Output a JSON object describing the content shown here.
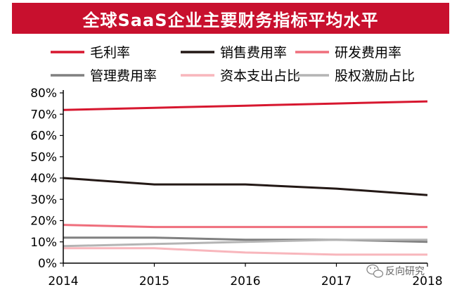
{
  "chart_data": {
    "type": "line",
    "title": "全球SaaS企业主要财务指标平均水平",
    "xlabel": "",
    "ylabel": "",
    "x": [
      "2014",
      "2015",
      "2016",
      "2017",
      "2018"
    ],
    "ylim": [
      0,
      80
    ],
    "y_ticks": [
      "0%",
      "10%",
      "20%",
      "30%",
      "40%",
      "50%",
      "60%",
      "70%",
      "80%"
    ],
    "legend_position": "top",
    "grid": false,
    "series": [
      {
        "name": "毛利率",
        "color": "#d7172f",
        "values": [
          72,
          73,
          74,
          75,
          76
        ]
      },
      {
        "name": "销售费用率",
        "color": "#231815",
        "values": [
          40,
          37,
          37,
          35,
          32
        ]
      },
      {
        "name": "研发费用率",
        "color": "#ef6e7c",
        "values": [
          18,
          17,
          17,
          17,
          17
        ]
      },
      {
        "name": "管理费用率",
        "color": "#808080",
        "values": [
          12,
          12,
          11,
          11,
          10
        ]
      },
      {
        "name": "资本支出占比",
        "color": "#f8b6bc",
        "values": [
          7,
          7,
          5,
          4,
          4
        ]
      },
      {
        "name": "股权激励占比",
        "color": "#b4b4b4",
        "values": [
          8,
          9,
          10,
          11,
          11
        ]
      }
    ]
  },
  "watermark": {
    "text": "反向研究",
    "icon": "wechat-icon"
  }
}
